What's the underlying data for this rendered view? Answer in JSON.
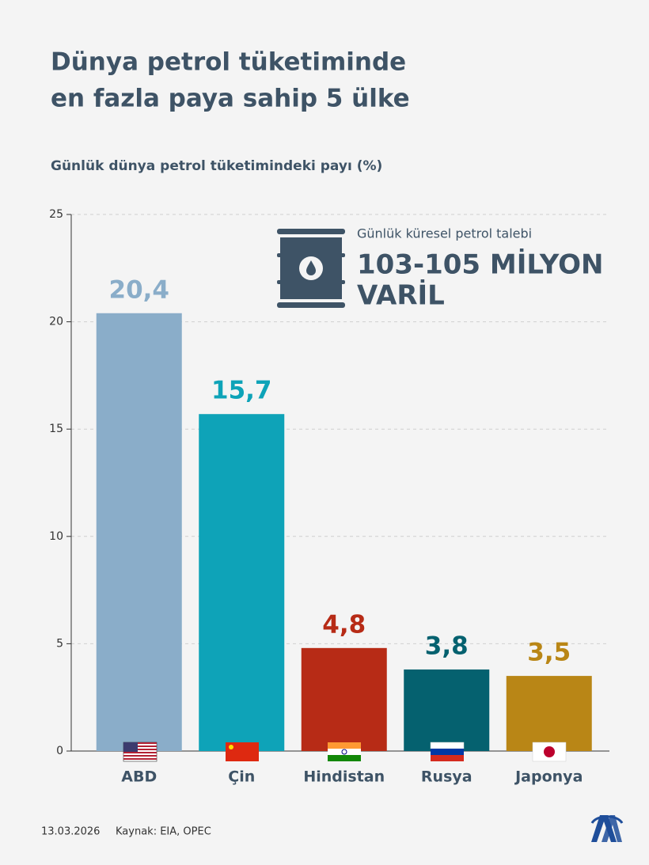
{
  "chart_data": {
    "type": "bar",
    "title": [
      "Dünya petrol tüketiminde",
      "en fazla paya sahip 5 ülke"
    ],
    "subtitle": "Günlük dünya petrol tüketimindeki payı (%)",
    "categories": [
      "ABD",
      "Çin",
      "Hindistan",
      "Rusya",
      "Japonya"
    ],
    "values": [
      20.4,
      15.7,
      4.8,
      3.8,
      3.5
    ],
    "value_labels": [
      "20,4",
      "15,7",
      "4,8",
      "3,8",
      "3,5"
    ],
    "colors": [
      "#8aadc9",
      "#0ea3b8",
      "#b72b16",
      "#05616f",
      "#b98616"
    ],
    "ylim": [
      0,
      25
    ],
    "yticks": [
      0,
      5,
      10,
      15,
      20,
      25
    ],
    "grid": true,
    "annotation": {
      "label": "Günlük küresel petrol talebi",
      "value": [
        "103-105 MİLYON",
        "VARİL"
      ]
    },
    "date": "13.03.2026",
    "source": "Kaynak: EIA, OPEC"
  }
}
